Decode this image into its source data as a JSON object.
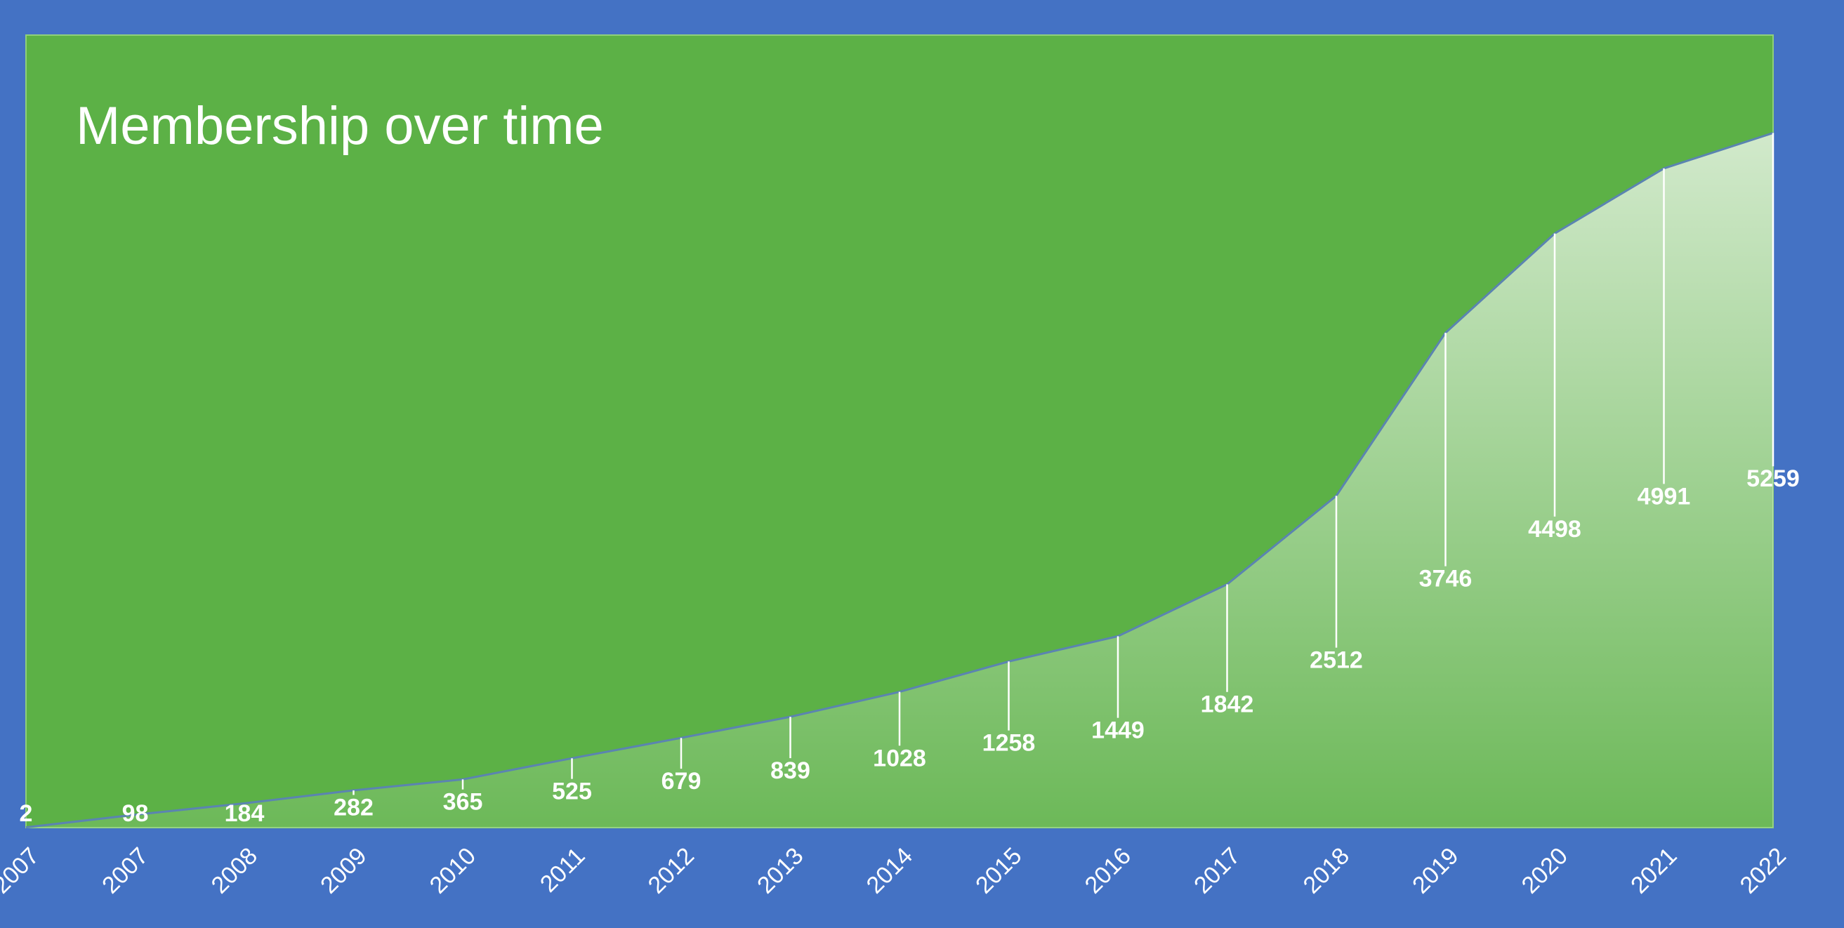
{
  "chart_data": {
    "type": "area",
    "title": "Membership over time",
    "categories": [
      "2007",
      "2007",
      "2008",
      "2009",
      "2010",
      "2011",
      "2012",
      "2013",
      "2014",
      "2015",
      "2016",
      "2017",
      "2018",
      "2019",
      "2020",
      "2021",
      "2022"
    ],
    "values": [
      2,
      98,
      184,
      282,
      365,
      525,
      679,
      839,
      1028,
      1258,
      1449,
      1842,
      2512,
      3746,
      4498,
      4991,
      5259
    ],
    "color": "#ffffff",
    "line_color": "#5b84b1",
    "background": "#4472c4",
    "plot_background": "#5cb146",
    "ylim": [
      0,
      6000
    ]
  }
}
